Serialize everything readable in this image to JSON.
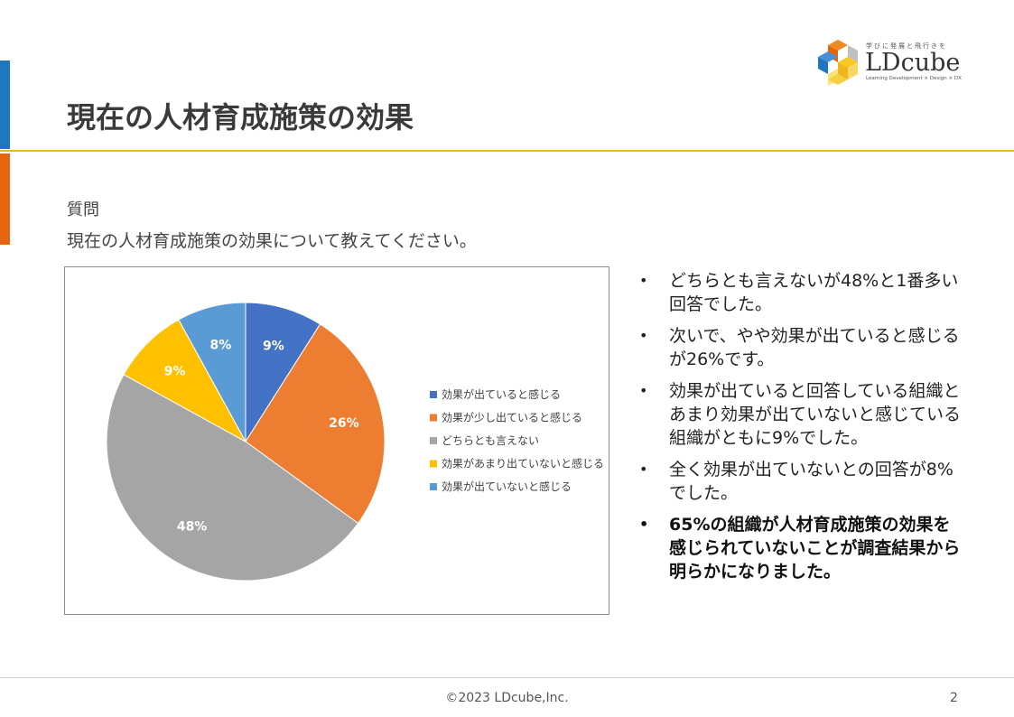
{
  "header": {
    "title": "現在の人材育成施策の効果",
    "logo": {
      "tagline": "学びに発展と飛行きを",
      "name": "LDcube",
      "subtitle": "Learning Development × Design × DX"
    }
  },
  "question": {
    "label": "質問",
    "text": "現在の人材育成施策の効果について教えてください。"
  },
  "colors": {
    "accent_blue": "#1f77c0",
    "accent_orange": "#e8640c",
    "title_line": "#f0b41c"
  },
  "chart_data": {
    "type": "pie",
    "slices": [
      {
        "label": "効果が出ていると感じる",
        "value": 9,
        "display": "9%",
        "color": "#4472c4"
      },
      {
        "label": "効果が少し出ていると感じる",
        "value": 26,
        "display": "26%",
        "color": "#ed7d31"
      },
      {
        "label": "どちらとも言えない",
        "value": 48,
        "display": "48%",
        "color": "#a5a5a5"
      },
      {
        "label": "効果があまり出ていないと感じる",
        "value": 9,
        "display": "9%",
        "color": "#ffc000"
      },
      {
        "label": "効果が出ていないと感じる",
        "value": 8,
        "display": "8%",
        "color": "#5b9bd5"
      }
    ],
    "legend_position": "right"
  },
  "bullets": [
    {
      "text": "どちらとも言えないが48%と1番多い回答でした。",
      "bold": false
    },
    {
      "text": "次いで、やや効果が出ていると感じるが26%です。",
      "bold": false
    },
    {
      "text": "効果が出ていると回答している組織とあまり効果が出ていないと感じている組織がともに9%でした。",
      "bold": false
    },
    {
      "text": "全く効果が出ていないとの回答が8%でした。",
      "bold": false
    },
    {
      "text": "65%の組織が人材育成施策の効果を感じられていないことが調査結果から明らかになりました。",
      "bold": true
    }
  ],
  "bullet_marker": "•",
  "footer": {
    "copyright": "©2023 LDcube,Inc.",
    "page_number": "2"
  }
}
